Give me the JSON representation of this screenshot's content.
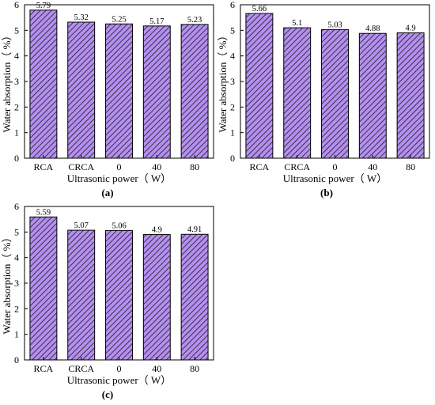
{
  "colors": {
    "bar_fill": "#b48ff0",
    "hatch": "#1a1a1a",
    "frame": "#000000",
    "background": "#ffffff"
  },
  "chart_data": [
    {
      "type": "bar",
      "panel_label": "(a)",
      "categories": [
        "RCA",
        "CRCA",
        "0",
        "40",
        "80"
      ],
      "values": [
        5.79,
        5.32,
        5.25,
        5.17,
        5.23
      ],
      "data_labels": [
        "5.79",
        "5.32",
        "5.25",
        "5.17",
        "5.23"
      ],
      "xlabel": "Ultrasonic power（ W）",
      "ylabel": "Water absorption（ %）",
      "ylim": [
        0,
        6
      ],
      "yticks": [
        "0",
        "1",
        "2",
        "3",
        "4",
        "5",
        "6"
      ],
      "grid": false,
      "pattern": "diagonal-hatch"
    },
    {
      "type": "bar",
      "panel_label": "(b)",
      "categories": [
        "RCA",
        "CRCA",
        "0",
        "40",
        "80"
      ],
      "values": [
        5.66,
        5.1,
        5.03,
        4.88,
        4.9
      ],
      "data_labels": [
        "5.66",
        "5.1",
        "5.03",
        "4.88",
        "4.9"
      ],
      "xlabel": "Ultrasonic power（ W）",
      "ylabel": "Water absorption（ %）",
      "ylim": [
        0,
        6
      ],
      "yticks": [
        "0",
        "1",
        "2",
        "3",
        "4",
        "5",
        "6"
      ],
      "grid": false,
      "pattern": "diagonal-hatch"
    },
    {
      "type": "bar",
      "panel_label": "(c)",
      "categories": [
        "RCA",
        "CRCA",
        "0",
        "40",
        "80"
      ],
      "values": [
        5.59,
        5.07,
        5.06,
        4.9,
        4.91
      ],
      "data_labels": [
        "5.59",
        "5.07",
        "5.06",
        "4.9",
        "4.91"
      ],
      "xlabel": "Ultrasonic power（ W）",
      "ylabel": "Water absorption（ %）",
      "ylim": [
        0,
        6
      ],
      "yticks": [
        "0",
        "1",
        "2",
        "3",
        "4",
        "5",
        "6"
      ],
      "grid": false,
      "pattern": "diagonal-hatch"
    }
  ]
}
